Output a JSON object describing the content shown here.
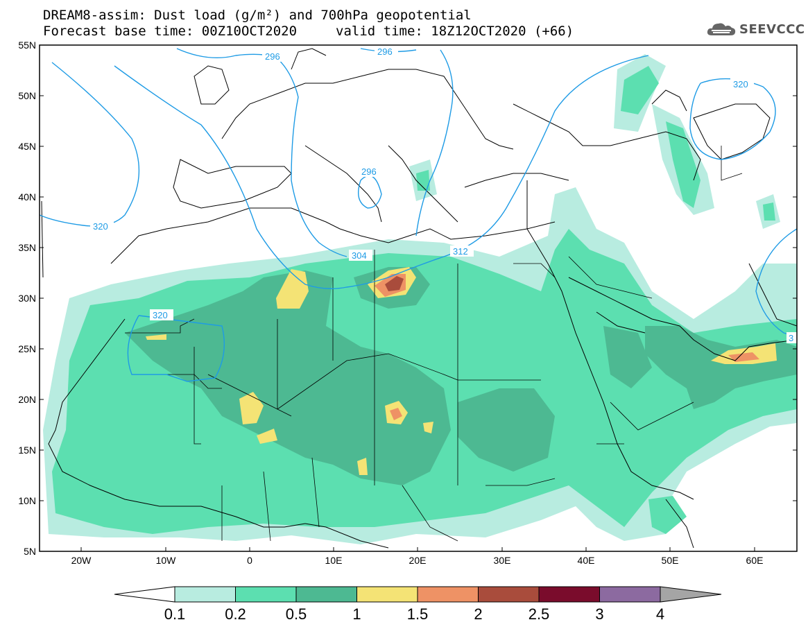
{
  "header": {
    "line1": "DREAM8-assim: Dust load (g/m²) and 700hPa geopotential",
    "line2": "Forecast base time: 00Z10OCT2020",
    "line3": "valid time: 18Z12OCT2020 (+66)"
  },
  "logo": {
    "text": "SEEVCCC",
    "icon": "cloud-icon"
  },
  "axes": {
    "lat_labels": [
      "55N",
      "50N",
      "45N",
      "40N",
      "35N",
      "30N",
      "25N",
      "20N",
      "15N",
      "10N",
      "5N"
    ],
    "lon_labels": [
      "20W",
      "10W",
      "0",
      "10E",
      "20E",
      "30E",
      "40E",
      "50E",
      "60E"
    ]
  },
  "contours": {
    "labels": [
      "296",
      "296",
      "296",
      "320",
      "320",
      "304",
      "312",
      "320",
      "3"
    ]
  },
  "legend": {
    "tick_labels": [
      "0.1",
      "0.2",
      "0.5",
      "1",
      "1.5",
      "2",
      "2.5",
      "3",
      "4"
    ],
    "colors": [
      "#b8ece0",
      "#5cdfb0",
      "#4db992",
      "#f4e375",
      "#ee9265",
      "#a94c3c",
      "#7a0c2c",
      "#8c6aa0",
      "#a5a5a5"
    ]
  },
  "map_data": {
    "lon_range": [
      -25,
      65
    ],
    "lat_range": [
      5,
      55
    ],
    "variable": "Dust load (g/m²)",
    "contour_field": "700hPa geopotential"
  }
}
